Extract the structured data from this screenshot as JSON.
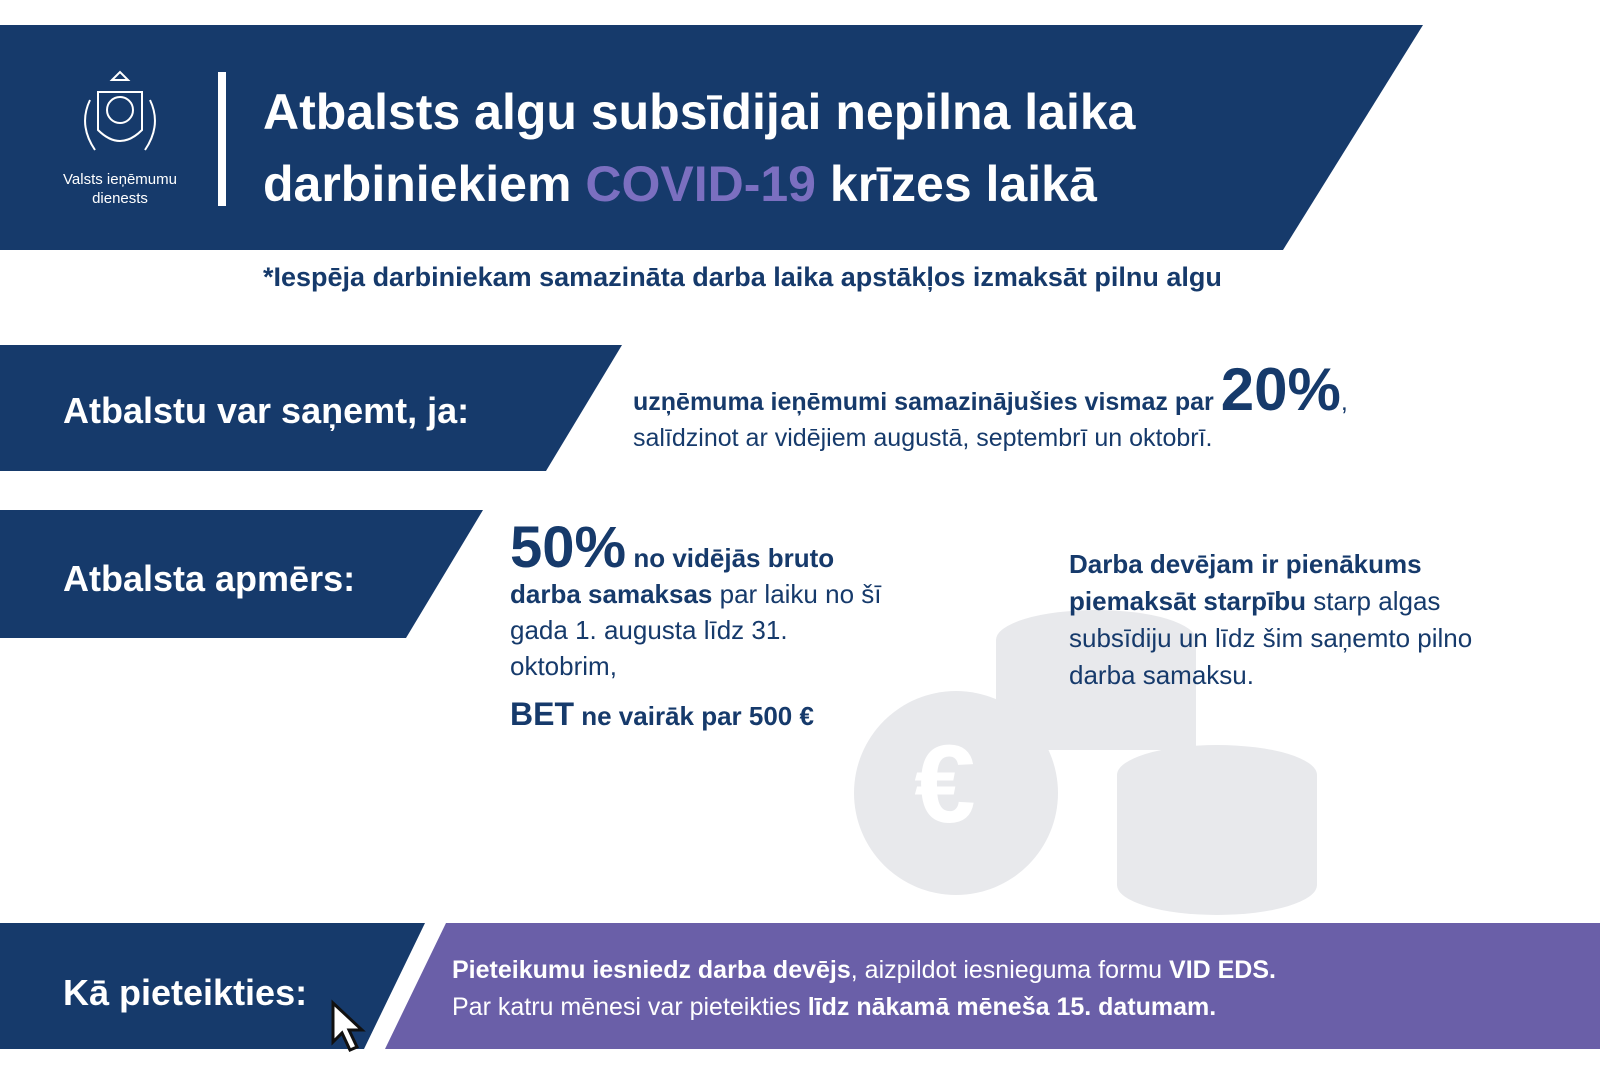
{
  "header": {
    "logo": [
      "Valsts ieņēmumu",
      "dienests"
    ],
    "title_line1": "Atbalsts algu subsīdijai nepilna laika",
    "title_line2_start": "darbiniekiem",
    "title_covid": "COVID-19",
    "title_line2_end": "krīzes laikā"
  },
  "subtitle": "*Iespēja darbiniekam samazināta darba laika apstākļos izmaksāt pilnu algu",
  "eligibility": {
    "label": "Atbalstu var saņemt, ja:",
    "text_bold": "uzņēmuma ieņēmumi samazinājušies vismaz par",
    "percent": "20%",
    "comma": ",",
    "text": "salīdzinot ar vidējiem augustā, septembrī un oktobrī."
  },
  "support": {
    "label": "Atbalsta apmērs:",
    "percent": "50%",
    "bold_1": "no vidējās bruto",
    "bold_2": "darba samaksas",
    "text": "par laiku no šī gada 1. augusta līdz 31. oktobrim,",
    "cap_bet": "BET",
    "cap_rest": "ne vairāk par 500 €",
    "note_bold": "Darba devējam ir pienākums piemaksāt starpību",
    "note_text": "starp algas subsīdiju un līdz šim saņemto pilno darba samaksu."
  },
  "apply": {
    "label": "Kā pieteikties:",
    "bold_1": "Pieteikumu iesniedz darba devējs",
    "text_1": ", aizpildot iesnieguma formu",
    "bold_2": "VID EDS.",
    "text_2": "Par katru mēnesi var pieteikties",
    "bold_3": "līdz nākamā mēneša 15. datumam."
  }
}
